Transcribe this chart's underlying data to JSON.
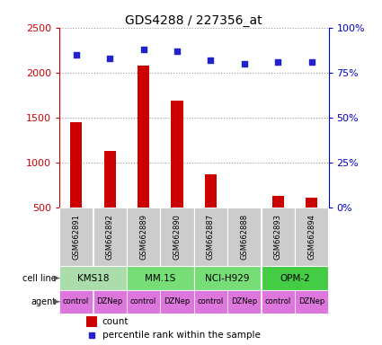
{
  "title": "GDS4288 / 227356_at",
  "samples": [
    "GSM662891",
    "GSM662892",
    "GSM662889",
    "GSM662890",
    "GSM662887",
    "GSM662888",
    "GSM662893",
    "GSM662894"
  ],
  "counts": [
    1450,
    1130,
    2080,
    1690,
    870,
    500,
    630,
    610
  ],
  "percentiles": [
    85,
    83,
    88,
    87,
    82,
    80,
    81,
    81
  ],
  "ylim_left": [
    500,
    2500
  ],
  "ylim_right": [
    0,
    100
  ],
  "yticks_left": [
    500,
    1000,
    1500,
    2000,
    2500
  ],
  "yticks_right": [
    0,
    25,
    50,
    75,
    100
  ],
  "bar_color": "#cc0000",
  "scatter_color": "#2222cc",
  "cell_line_data": [
    {
      "label": "KMS18",
      "start": 0,
      "end": 2,
      "color": "#aaddaa"
    },
    {
      "label": "MM.1S",
      "start": 2,
      "end": 4,
      "color": "#77dd77"
    },
    {
      "label": "NCI-H929",
      "start": 4,
      "end": 6,
      "color": "#77dd77"
    },
    {
      "label": "OPM-2",
      "start": 6,
      "end": 8,
      "color": "#44cc44"
    }
  ],
  "agents": [
    "control",
    "DZNep",
    "control",
    "DZNep",
    "control",
    "DZNep",
    "control",
    "DZNep"
  ],
  "agent_color": "#dd77dd",
  "sample_bg_color": "#cccccc",
  "grid_color": "#999999",
  "left_label_color": "#cc0000",
  "right_label_color": "#0000cc",
  "legend_count_color": "#cc0000",
  "legend_pct_color": "#2222cc",
  "bar_width": 0.35
}
